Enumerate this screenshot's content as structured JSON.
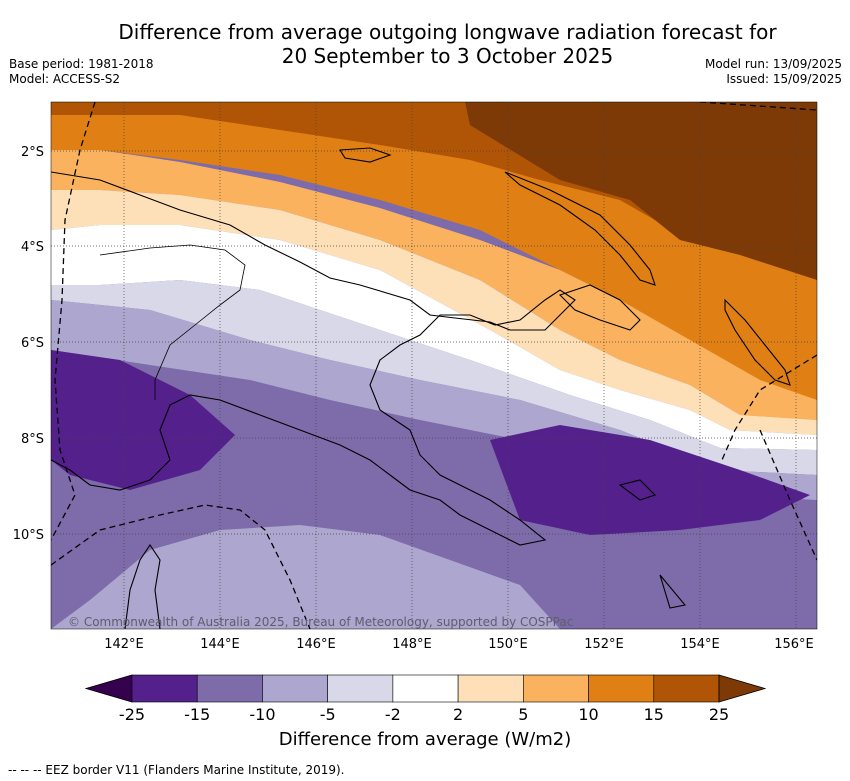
{
  "title_line1": "Difference from average outgoing longwave radiation forecast for",
  "title_line2": "20 September to 3 October 2025",
  "meta_left": {
    "base_period": "Base period: 1981-2018",
    "model": "Model: ACCESS-S2"
  },
  "meta_right": {
    "model_run": "Model run: 13/09/2025",
    "issued": "Issued: 15/09/2025"
  },
  "map": {
    "lat_labels": [
      "2°S",
      "4°S",
      "6°S",
      "8°S",
      "10°S"
    ],
    "lon_labels": [
      "142°E",
      "144°E",
      "146°E",
      "148°E",
      "150°E",
      "152°E",
      "154°E",
      "156°E"
    ],
    "copyright": "© Commonwealth of Australia 2025, Bureau of Meteorology, supported by COSPPac"
  },
  "colorbar": {
    "ticks": [
      "-25",
      "-15",
      "-10",
      "-5",
      "-2",
      "2",
      "5",
      "10",
      "15",
      "25"
    ],
    "colors": [
      "#54208c",
      "#7d6baa",
      "#ada6cf",
      "#d8d8e8",
      "#ffffff",
      "#fde0b8",
      "#fab25e",
      "#e07f14",
      "#b05506"
    ],
    "under_color": "#35004e",
    "over_color": "#7d3a06",
    "label": "Difference from average (W/m2)"
  },
  "footnote": "--  --  -- EEZ border V11 (Flanders Marine Institute, 2019)."
}
